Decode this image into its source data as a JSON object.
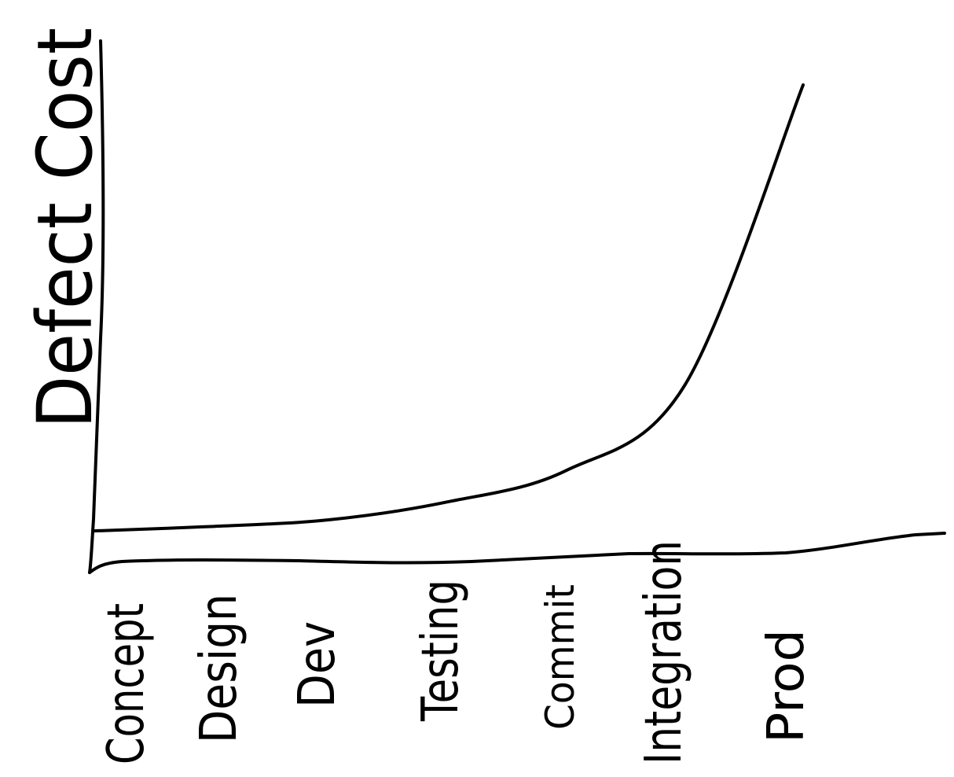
{
  "chart_data": {
    "type": "line",
    "title": "",
    "xlabel": "",
    "ylabel": "Defect Cost",
    "categories": [
      "Concept",
      "Design",
      "Dev",
      "Testing",
      "Commit",
      "Integration",
      "Prod"
    ],
    "ylim": [
      0,
      100
    ],
    "y_ticks": "none",
    "grid": false,
    "legend": "none",
    "style": "hand-drawn sketch",
    "line_color": "#000000",
    "series": [
      {
        "values": [
          0.5,
          1.5,
          3,
          7,
          14,
          33,
          100
        ]
      }
    ]
  }
}
